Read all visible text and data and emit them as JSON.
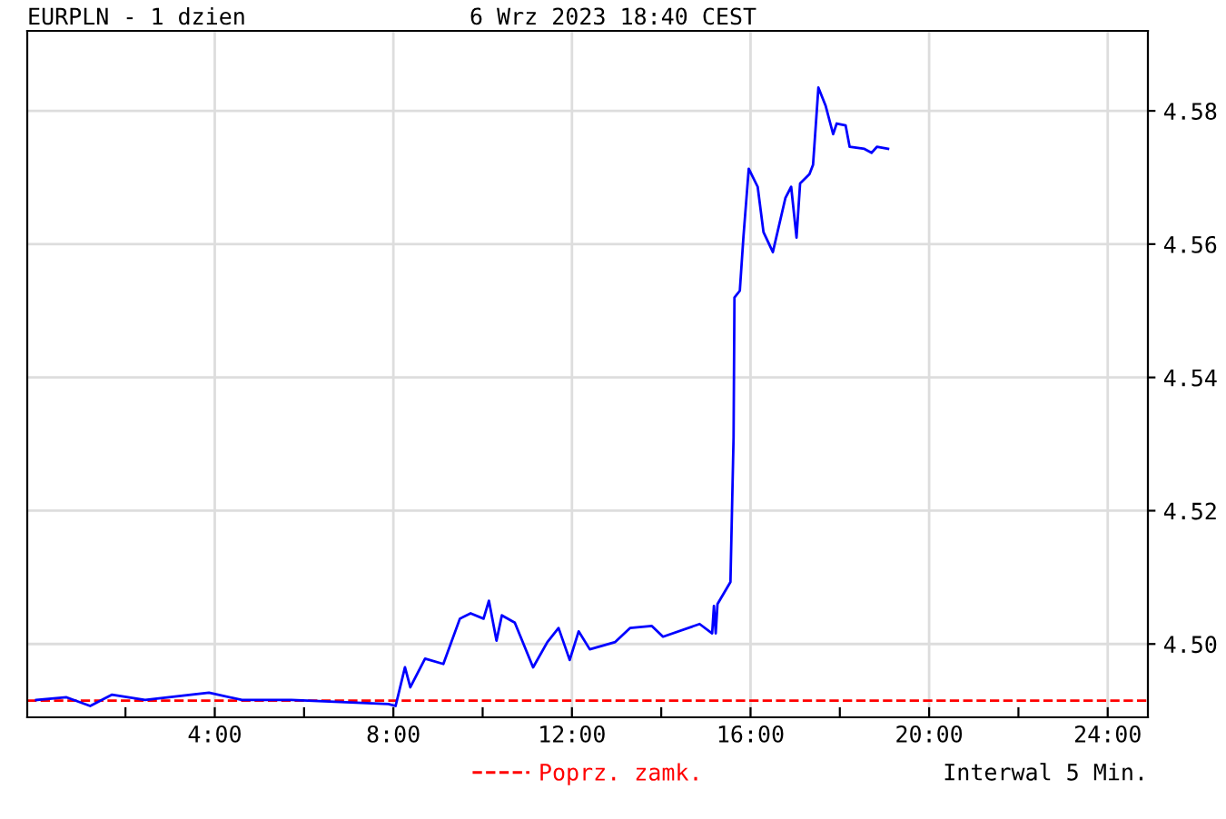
{
  "chart_data": {
    "type": "line",
    "title": "EURPLN - 1 dzien",
    "subtitle": "6 Wrz 2023 18:40 CEST",
    "annotations": [
      "Interwal 5 Min."
    ],
    "xlim": [
      -0.2,
      24.9
    ],
    "ylim": [
      4.489,
      4.592
    ],
    "xticks": [
      {
        "value": 2,
        "label": null
      },
      {
        "value": 4,
        "label": "4:00"
      },
      {
        "value": 6,
        "label": null
      },
      {
        "value": 8,
        "label": "8:00"
      },
      {
        "value": 10,
        "label": null
      },
      {
        "value": 12,
        "label": "12:00"
      },
      {
        "value": 14,
        "label": null
      },
      {
        "value": 16,
        "label": "16:00"
      },
      {
        "value": 18,
        "label": null
      },
      {
        "value": 20,
        "label": "20:00"
      },
      {
        "value": 22,
        "label": null
      },
      {
        "value": 24,
        "label": "24:00"
      }
    ],
    "yticks": [
      {
        "value": 4.5,
        "label": "4.50"
      },
      {
        "value": 4.52,
        "label": "4.52"
      },
      {
        "value": 4.54,
        "label": "4.54"
      },
      {
        "value": 4.56,
        "label": "4.56"
      },
      {
        "value": 4.58,
        "label": "4.58"
      }
    ],
    "grid": true,
    "legend": "bottom",
    "marker": "none",
    "line_style": "solid",
    "ref_lines": [
      {
        "axis": "y",
        "value": 4.4915,
        "label": "Poprz. zamk.",
        "color": "#ff0000",
        "line_style": "dashed"
      }
    ],
    "series": [
      {
        "color": "#0000ff",
        "x": [
          0.0,
          0.68,
          1.21,
          1.7,
          2.44,
          3.87,
          4.61,
          5.72,
          7.89,
          8.05,
          8.26,
          8.38,
          8.71,
          9.12,
          9.49,
          9.73,
          10.02,
          10.14,
          10.31,
          10.43,
          10.72,
          11.13,
          11.45,
          11.7,
          11.95,
          12.15,
          12.4,
          12.97,
          13.3,
          13.79,
          14.04,
          14.86,
          15.14,
          15.18,
          15.22,
          15.26,
          15.55,
          15.62,
          15.64,
          15.76,
          15.84,
          15.96,
          16.16,
          16.29,
          16.5,
          16.78,
          16.91,
          17.03,
          17.11,
          17.32,
          17.4,
          17.52,
          17.68,
          17.85,
          17.93,
          18.13,
          18.22,
          18.55,
          18.71,
          18.83,
          19.08
        ],
        "values": [
          4.4916,
          4.492,
          4.4907,
          4.4924,
          4.4916,
          4.4927,
          4.4916,
          4.4916,
          4.491,
          4.4907,
          4.4965,
          4.4935,
          4.4978,
          4.497,
          4.5038,
          4.5046,
          4.5038,
          4.5065,
          4.5005,
          4.5043,
          4.5032,
          4.4965,
          4.5003,
          4.5024,
          4.4976,
          4.5019,
          4.4992,
          4.5003,
          4.5024,
          4.5027,
          4.5011,
          4.503,
          4.5016,
          4.5057,
          4.5016,
          4.506,
          4.5093,
          4.531,
          4.552,
          4.553,
          4.561,
          4.5713,
          4.5686,
          4.5618,
          4.5588,
          4.5669,
          4.5686,
          4.561,
          4.5691,
          4.5705,
          4.5719,
          4.5835,
          4.5808,
          4.5765,
          4.5781,
          4.5778,
          4.5746,
          4.5743,
          4.5737,
          4.5746,
          4.5743
        ]
      }
    ]
  }
}
